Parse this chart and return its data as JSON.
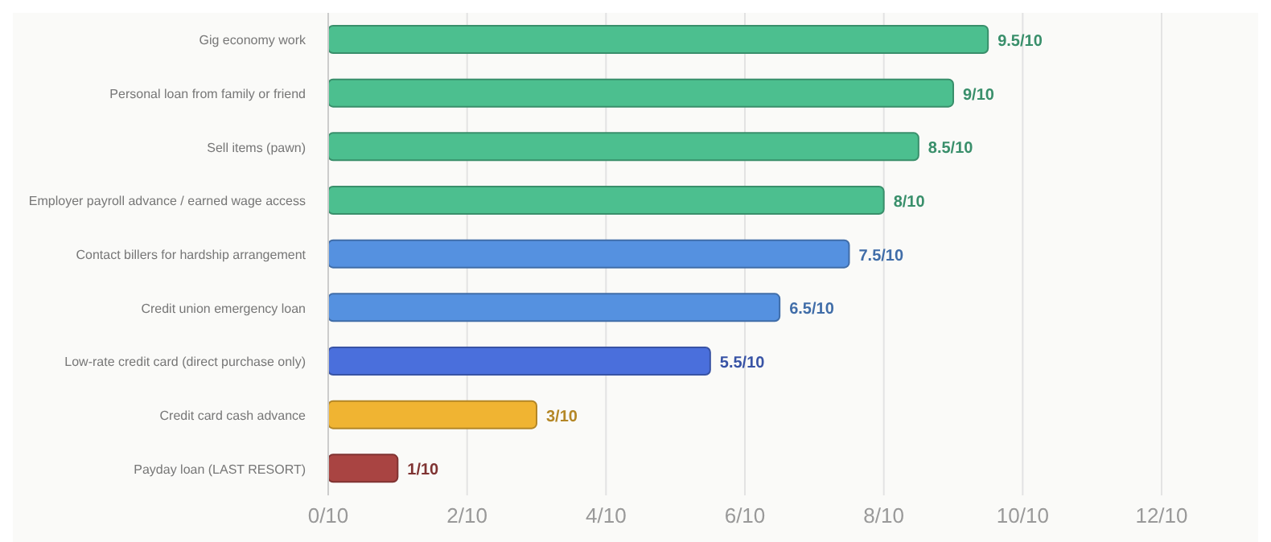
{
  "chart_data": {
    "type": "bar",
    "orientation": "horizontal",
    "categories": [
      "Gig economy work",
      "Personal loan from family or friend",
      "Sell items (pawn)",
      "Employer payroll advance / earned wage access",
      "Contact billers for hardship arrangement",
      "Credit union emergency loan",
      "Low-rate credit card (direct purchase only)",
      "Credit card cash advance",
      "Payday loan (LAST RESORT)"
    ],
    "values": [
      0.95,
      0.9,
      0.85,
      0.8,
      0.75,
      0.65,
      0.55,
      0.3,
      0.1
    ],
    "colors": [
      "#4cbf8f",
      "#4cbf8f",
      "#4cbf8f",
      "#4cbf8f",
      "#5591e0",
      "#5591e0",
      "#4a6fdc",
      "#f0b432",
      "#a94442"
    ],
    "value_labels": [
      "9.5/10",
      "9/10",
      "8.5/10",
      "8/10",
      "7.5/10",
      "6.5/10",
      "5.5/10",
      "3/10",
      "1/10"
    ],
    "xlim": [
      0,
      1.2
    ],
    "xticks": [
      {
        "value": 0,
        "label": "0/10"
      },
      {
        "value": 0.2,
        "label": "2/10"
      },
      {
        "value": 0.4,
        "label": "4/10"
      },
      {
        "value": 0.6,
        "label": "6/10"
      },
      {
        "value": 0.8,
        "label": "8/10"
      },
      {
        "value": 1,
        "label": "10/10"
      },
      {
        "value": 1.2,
        "label": "12/10"
      }
    ],
    "grid": "x"
  }
}
